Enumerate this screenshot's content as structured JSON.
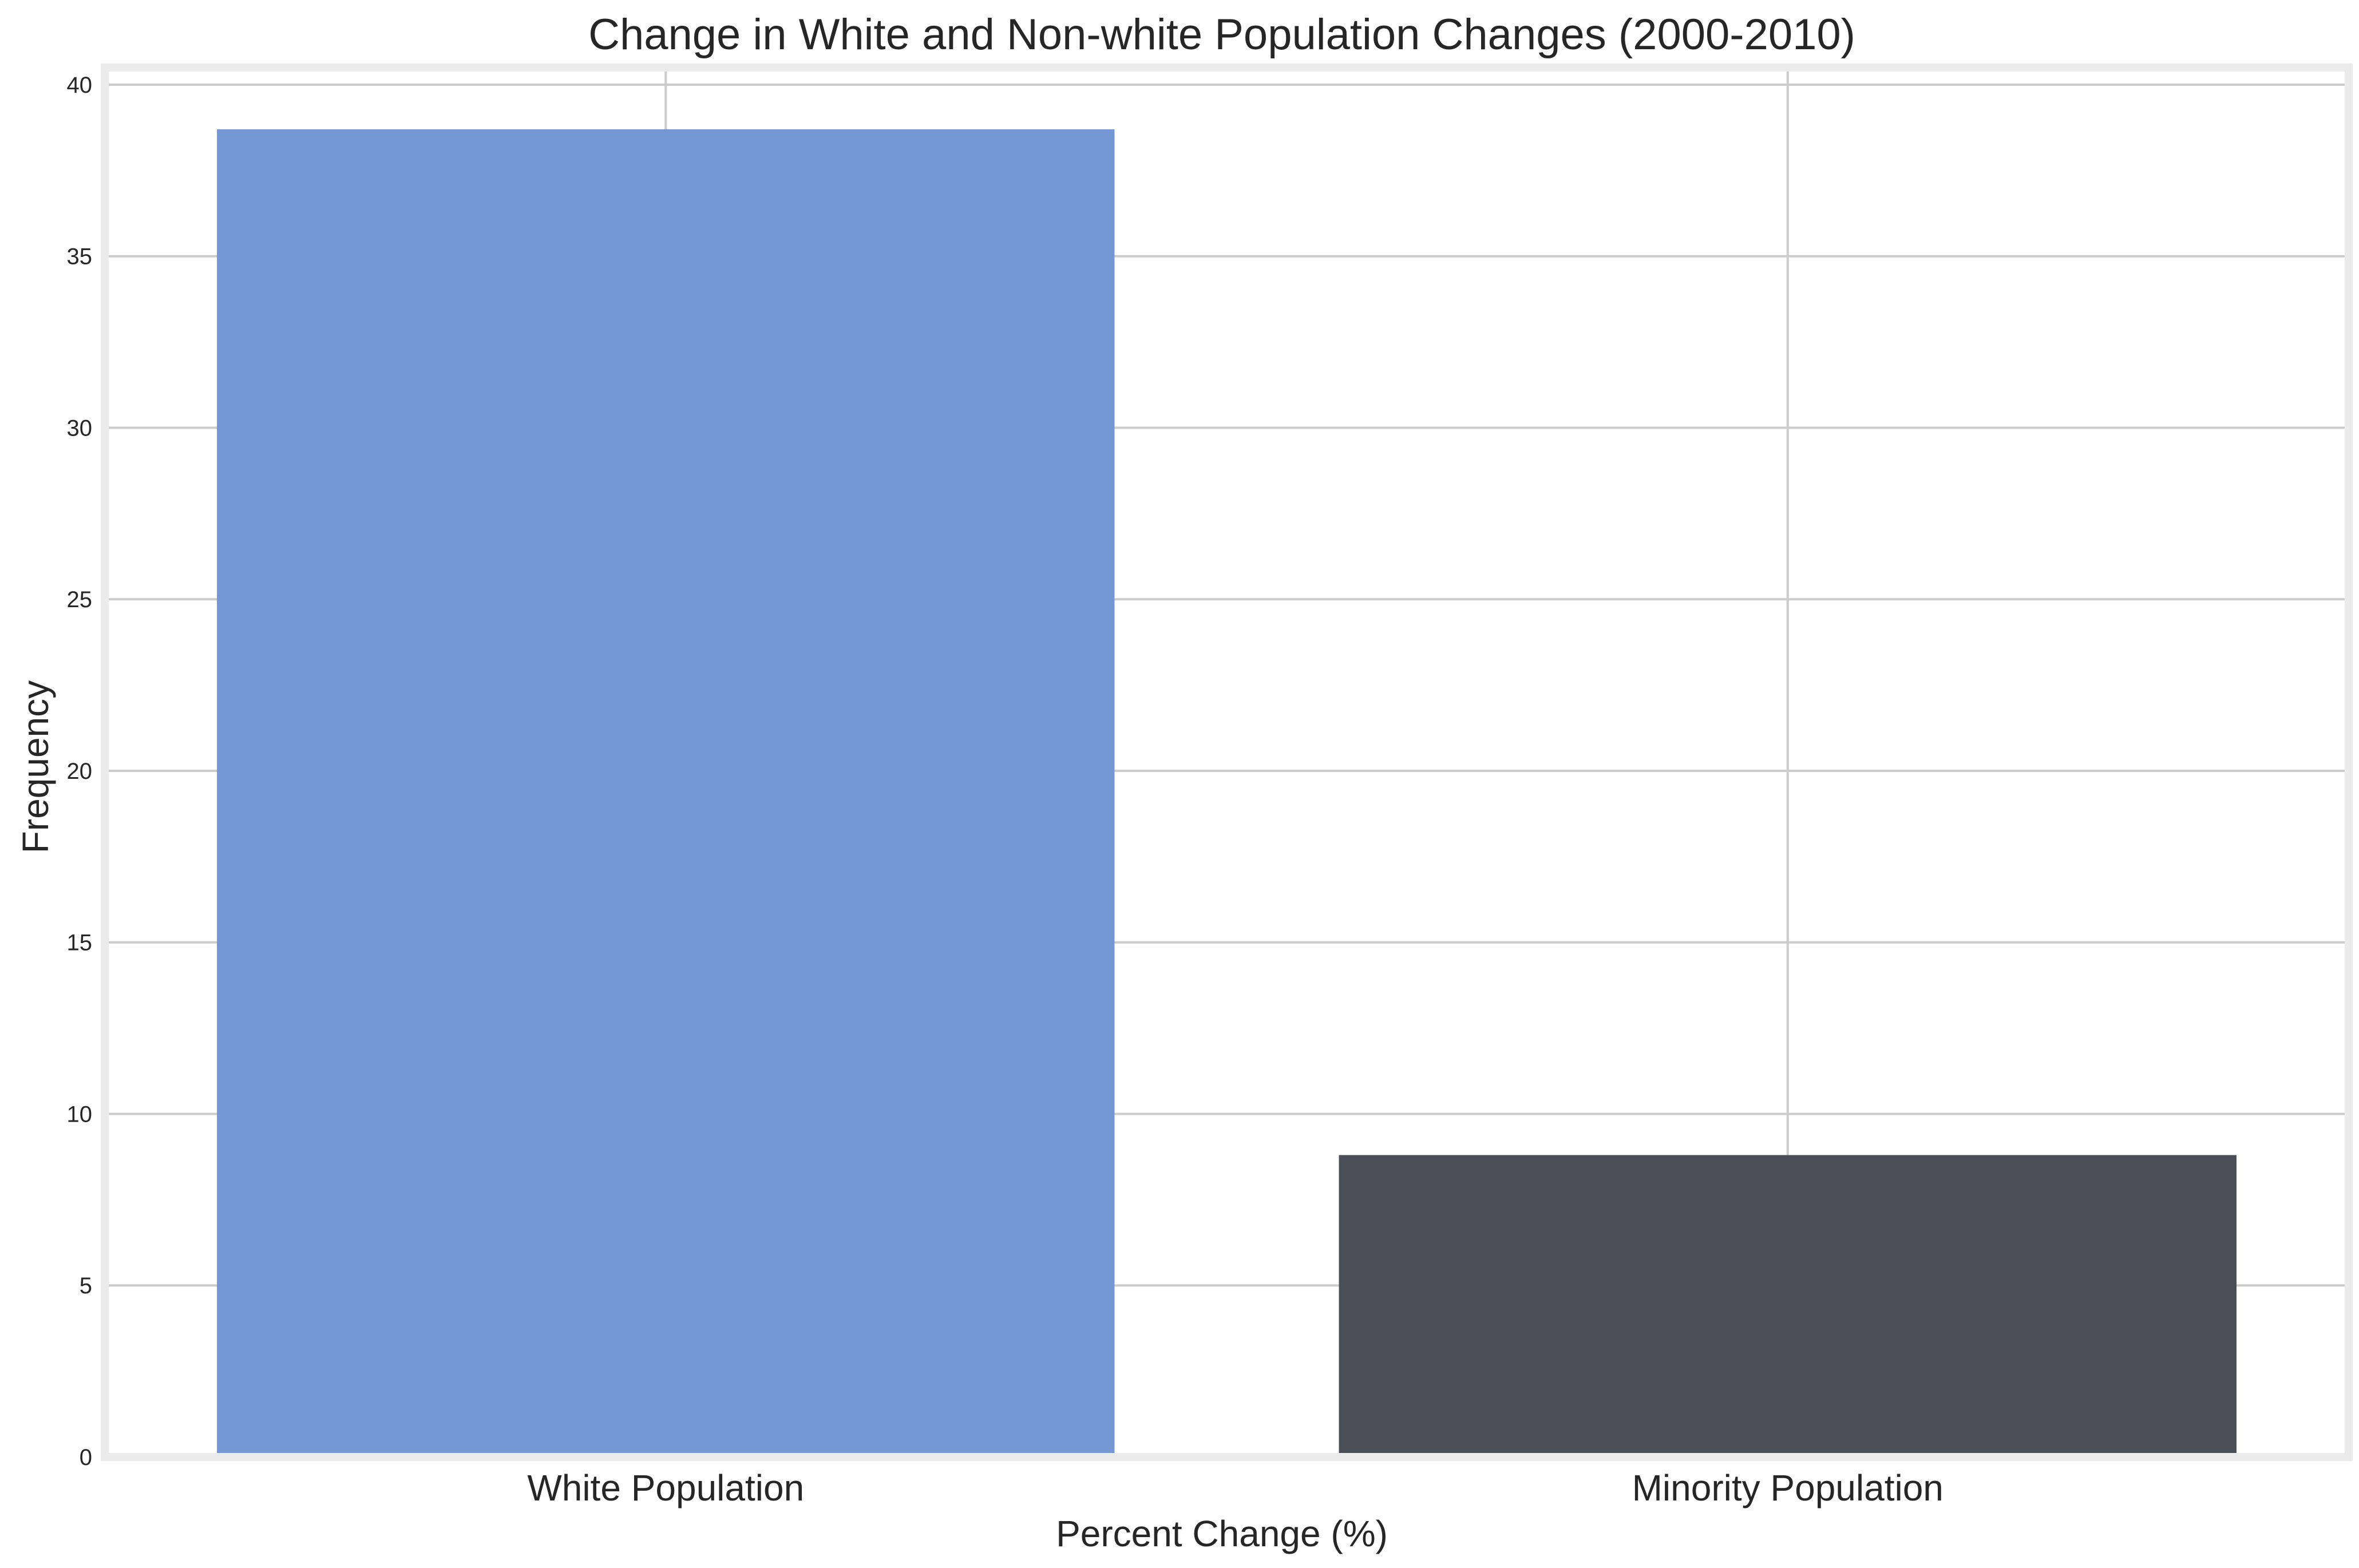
{
  "chart_data": {
    "type": "bar",
    "title": "Change in White and Non-white Population Changes (2000-2010)",
    "xlabel": "Percent Change (%)",
    "ylabel": "Frequency",
    "categories": [
      "White Population",
      "Minority Population"
    ],
    "values": [
      38.7,
      8.8
    ],
    "colors": [
      "#7496d2",
      "#4a4e57"
    ],
    "ylim": [
      0,
      40.5
    ],
    "yticks": [
      0,
      5,
      10,
      15,
      20,
      25,
      30,
      35,
      40
    ],
    "grid": true
  }
}
